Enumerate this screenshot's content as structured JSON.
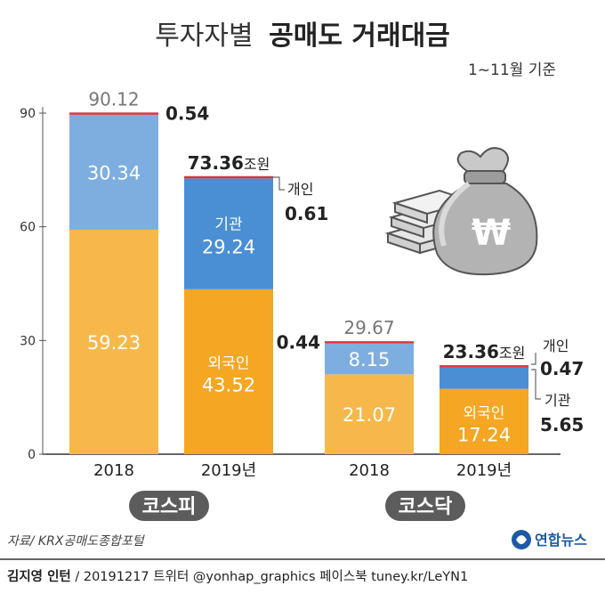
{
  "title": {
    "light": "투자자별",
    "bold": "공매도 거래대금"
  },
  "subtitle": "1~11월 기준",
  "yticks": [
    "90",
    "60",
    "30",
    "0"
  ],
  "colors": {
    "foreign_2018": "#f7b84b",
    "foreign_2019": "#f5a623",
    "inst_2018": "#7eaee0",
    "inst_2019": "#4a8fd4",
    "individual": "#d9363e",
    "group_label_bg": "#5c5c5c"
  },
  "icons": [
    "money-bag-icon",
    "cash-stack-icon"
  ],
  "chart_data": {
    "type": "bar",
    "stacked": true,
    "ylim": [
      0,
      90
    ],
    "groups": [
      {
        "name": "코스피",
        "bars": [
          {
            "category": "2018",
            "total": "90.12",
            "segments": [
              {
                "series": "외국인",
                "value": 59.23,
                "label": "59.23"
              },
              {
                "series": "기관",
                "value": 30.34,
                "label": "30.34"
              },
              {
                "series": "개인",
                "value": 0.54,
                "label": "0.54"
              }
            ]
          },
          {
            "category": "2019년",
            "total": "73.36",
            "total_unit": "조원",
            "segments": [
              {
                "series": "외국인",
                "value": 43.52,
                "label": "43.52"
              },
              {
                "series": "기관",
                "value": 29.24,
                "label": "29.24"
              },
              {
                "series": "개인",
                "value": 0.61,
                "label": "0.61"
              }
            ]
          }
        ]
      },
      {
        "name": "코스닥",
        "bars": [
          {
            "category": "2018",
            "total": "29.67",
            "segments": [
              {
                "series": "외국인",
                "value": 21.07,
                "label": "21.07"
              },
              {
                "series": "기관",
                "value": 8.15,
                "label": "8.15"
              },
              {
                "series": "개인",
                "value": 0.44,
                "label": "0.44"
              }
            ]
          },
          {
            "category": "2019년",
            "total": "23.36",
            "total_unit": "조원",
            "segments": [
              {
                "series": "외국인",
                "value": 17.24,
                "label": "17.24"
              },
              {
                "series": "기관",
                "value": 5.65,
                "label": "5.65"
              },
              {
                "series": "개인",
                "value": 0.47,
                "label": "0.47"
              }
            ]
          }
        ]
      }
    ]
  },
  "series_labels": {
    "foreign": "외국인",
    "inst": "기관",
    "individual": "개인"
  },
  "source": "자료/ KRX공매도종합포털",
  "logo_text": "연합뉴스",
  "credit": {
    "author": "김지영 인턴",
    "rest": " / 20191217  트위터 @yonhap_graphics  페이스북 tuney.kr/LeYN1"
  }
}
